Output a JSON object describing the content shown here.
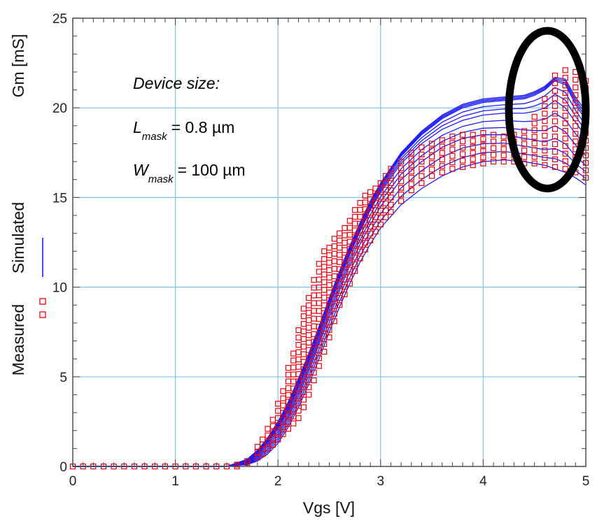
{
  "chart_data": {
    "type": "scatter",
    "xlabel": "Vgs [V]",
    "ylabel": "Gm [mS]",
    "xlim": [
      0,
      5
    ],
    "ylim": [
      0,
      25
    ],
    "x_ticks": [
      "0",
      "1",
      "2",
      "3",
      "4",
      "5"
    ],
    "y_ticks": [
      "0",
      "5",
      "10",
      "15",
      "20",
      "25"
    ],
    "grid": true,
    "legend": [
      {
        "label": "Measured",
        "marker": "open-square",
        "color": "#e8000b"
      },
      {
        "label": "Simulated",
        "marker": "line",
        "color": "#1a1aff"
      }
    ],
    "annotations": {
      "device_size": "Device size:",
      "l_main": "L",
      "l_sub": "mask",
      "l_value": "= 0.8 µm",
      "w_main": "W",
      "w_sub": "mask",
      "w_value": "= 100 µm"
    },
    "highlight": {
      "shape": "ellipse",
      "color": "#000000",
      "x_range": [
        4.25,
        5.0
      ],
      "y_range": [
        15.5,
        24.3
      ]
    },
    "series": [
      {
        "name": "Simulated",
        "kind": "line-family",
        "color": "#1a1aff",
        "x": [
          0,
          1.5,
          1.7,
          1.8,
          1.9,
          2.0,
          2.1,
          2.2,
          2.3,
          2.4,
          2.5,
          2.6,
          2.7,
          2.8,
          2.9,
          3.0,
          3.2,
          3.4,
          3.6,
          3.8,
          4.0,
          4.2,
          4.4,
          4.5,
          4.6,
          4.7,
          4.8,
          4.9,
          5.0
        ],
        "curves": [
          [
            0,
            0,
            0.1,
            0.3,
            0.7,
            1.3,
            2.2,
            3.3,
            4.6,
            6.0,
            7.5,
            8.9,
            10.2,
            11.4,
            12.4,
            13.3,
            14.6,
            15.5,
            16.2,
            16.7,
            17.0,
            17.1,
            17.0,
            16.9,
            16.8,
            16.6,
            16.4,
            16.1,
            15.7
          ],
          [
            0,
            0,
            0.2,
            0.5,
            1.0,
            1.7,
            2.7,
            3.9,
            5.3,
            6.8,
            8.3,
            9.8,
            11.2,
            12.4,
            13.5,
            14.5,
            16.0,
            17.0,
            17.8,
            18.3,
            18.5,
            18.5,
            18.3,
            18.2,
            18.1,
            18.3,
            18.0,
            17.3,
            16.8
          ],
          [
            0,
            0,
            0.3,
            0.7,
            1.3,
            2.1,
            3.1,
            4.4,
            5.8,
            7.3,
            8.9,
            10.4,
            11.8,
            13.1,
            14.3,
            15.3,
            16.9,
            18.0,
            18.8,
            19.3,
            19.6,
            19.7,
            19.7,
            19.8,
            20.0,
            20.4,
            20.0,
            19.2,
            18.4
          ],
          [
            0,
            0,
            0.35,
            0.8,
            1.5,
            2.3,
            3.4,
            4.7,
            6.1,
            7.6,
            9.2,
            10.7,
            12.1,
            13.4,
            14.6,
            15.6,
            17.3,
            18.5,
            19.4,
            20.0,
            20.3,
            20.4,
            20.5,
            20.7,
            21.0,
            21.5,
            21.3,
            20.2,
            19.3
          ],
          [
            0,
            0,
            0.4,
            0.9,
            1.6,
            2.5,
            3.6,
            4.9,
            6.3,
            7.8,
            9.4,
            10.9,
            12.3,
            13.6,
            14.8,
            15.8,
            17.5,
            18.7,
            19.6,
            20.2,
            20.5,
            20.6,
            20.7,
            20.9,
            21.2,
            21.7,
            21.6,
            20.6,
            19.8
          ]
        ]
      },
      {
        "name": "Measured",
        "kind": "scatter",
        "marker": "open-square",
        "color": "#e8000b",
        "x": [
          0,
          0.1,
          0.2,
          0.3,
          0.4,
          0.5,
          0.6,
          0.7,
          0.8,
          0.9,
          1.0,
          1.1,
          1.2,
          1.3,
          1.4,
          1.5,
          1.6,
          1.7,
          1.8,
          1.85,
          1.9,
          1.95,
          2.0,
          2.05,
          2.1,
          2.15,
          2.2,
          2.25,
          2.3,
          2.35,
          2.4,
          2.45,
          2.5,
          2.55,
          2.6,
          2.65,
          2.7,
          2.75,
          2.8,
          2.85,
          2.9,
          2.95,
          3.0,
          3.05,
          3.1,
          3.2,
          3.3,
          3.4,
          3.5,
          3.6,
          3.7,
          3.8,
          3.9,
          4.0,
          4.1,
          4.2,
          4.3,
          4.4,
          4.5,
          4.6,
          4.7,
          4.8,
          4.9,
          5.0
        ],
        "y_min": [
          0,
          0,
          0,
          0,
          0,
          0,
          0,
          0,
          0,
          0,
          0,
          0,
          0,
          0,
          0,
          0,
          0,
          0.2,
          0.5,
          0.7,
          1.0,
          1.2,
          1.5,
          1.8,
          2.1,
          2.4,
          2.7,
          3.3,
          4.0,
          4.8,
          5.6,
          6.4,
          7.2,
          8.1,
          9.0,
          9.6,
          10.2,
          10.9,
          11.6,
          12.1,
          12.6,
          13.1,
          13.5,
          13.9,
          14.2,
          14.8,
          15.4,
          15.8,
          16.2,
          16.4,
          16.6,
          16.7,
          16.8,
          16.9,
          17.0,
          17.0,
          17.0,
          16.9,
          16.9,
          16.8,
          16.7,
          16.6,
          16.4,
          16.1
        ],
        "y_max": [
          0,
          0,
          0,
          0,
          0,
          0,
          0,
          0,
          0,
          0,
          0,
          0,
          0,
          0,
          0,
          0,
          0.1,
          0.3,
          1.1,
          1.5,
          2.1,
          2.6,
          3.5,
          4.2,
          5.5,
          6.3,
          7.6,
          8.8,
          9.4,
          10.4,
          11.3,
          12.0,
          12.2,
          12.7,
          13.0,
          13.3,
          13.7,
          14.3,
          14.7,
          15.1,
          15.3,
          15.5,
          15.8,
          16.2,
          16.6,
          17.0,
          17.5,
          17.8,
          18.0,
          18.2,
          18.4,
          18.5,
          18.5,
          18.6,
          18.5,
          18.4,
          18.5,
          18.7,
          19.5,
          20.5,
          21.8,
          22.1,
          22.0,
          21.5
        ]
      }
    ]
  }
}
